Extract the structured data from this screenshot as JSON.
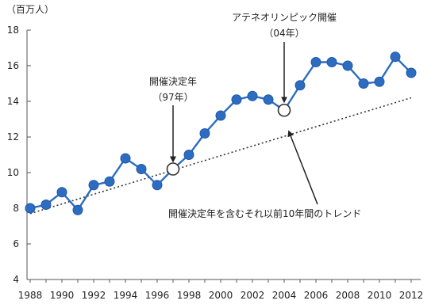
{
  "chart_data": {
    "type": "line",
    "title": "",
    "xlabel": "",
    "ylabel": "（百万人）",
    "ylim": [
      4,
      18
    ],
    "yticks": [
      4,
      6,
      8,
      10,
      12,
      14,
      16,
      18
    ],
    "xticks": [
      1988,
      1990,
      1992,
      1994,
      1996,
      1998,
      2000,
      2002,
      2004,
      2006,
      2008,
      2010,
      2012
    ],
    "xlim": [
      1988,
      2012
    ],
    "grid": false,
    "series": [
      {
        "name": "",
        "color": "#2d6cc0",
        "x": [
          1988,
          1989,
          1990,
          1991,
          1992,
          1993,
          1994,
          1995,
          1996,
          1997,
          1998,
          1999,
          2000,
          2001,
          2002,
          2003,
          2004,
          2005,
          2006,
          2007,
          2008,
          2009,
          2010,
          2011,
          2012
        ],
        "y": [
          8.0,
          8.2,
          8.9,
          7.9,
          9.3,
          9.5,
          10.8,
          10.2,
          9.3,
          10.2,
          11.0,
          12.2,
          13.2,
          14.1,
          14.3,
          14.1,
          13.5,
          14.9,
          16.2,
          16.2,
          16.0,
          15.0,
          15.1,
          16.5,
          15.6
        ],
        "highlight_years": [
          1997,
          2004
        ]
      }
    ],
    "trend": {
      "label": "開催決定年を含むそれ以前10年間のトレンド",
      "x": [
        1988,
        2012
      ],
      "y": [
        7.7,
        14.2
      ],
      "style": "dotted"
    },
    "annotations": [
      {
        "id": "decision",
        "line1": "開催決定年",
        "line2": "（97年）",
        "year": 1997
      },
      {
        "id": "athens",
        "line1": "アテネオリンピック開催",
        "line2": "（04年）",
        "year": 2004
      }
    ]
  }
}
